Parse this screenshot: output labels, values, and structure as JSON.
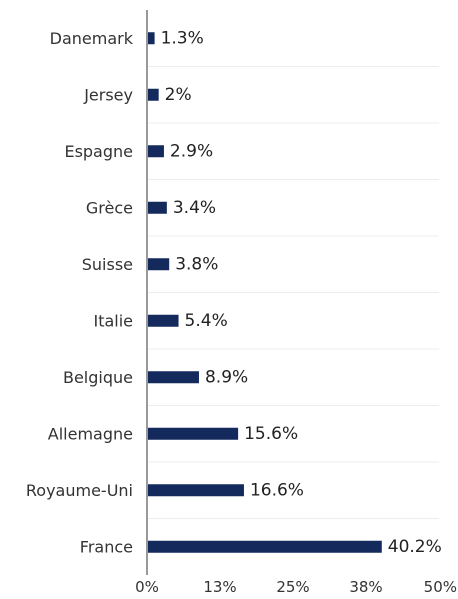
{
  "chart_data": {
    "type": "bar",
    "orientation": "horizontal",
    "categories": [
      "Danemark",
      "Jersey",
      "Espagne",
      "Grèce",
      "Suisse",
      "Italie",
      "Belgique",
      "Allemagne",
      "Royaume-Uni",
      "France"
    ],
    "values": [
      1.3,
      2,
      2.9,
      3.4,
      3.8,
      5.4,
      8.9,
      15.6,
      16.6,
      40.2
    ],
    "value_labels": [
      "1.3%",
      "2%",
      "2.9%",
      "3.4%",
      "3.8%",
      "5.4%",
      "8.9%",
      "15.6%",
      "16.6%",
      "40.2%"
    ],
    "xlim": [
      0,
      50
    ],
    "x_ticks": [
      0,
      12.5,
      25,
      37.5,
      50
    ],
    "x_tick_labels": [
      "0%",
      "13%",
      "25%",
      "38%",
      "50%"
    ],
    "title": "",
    "xlabel": "",
    "ylabel": "",
    "grid": true,
    "legend": "none",
    "bar_color": "#14295c"
  }
}
